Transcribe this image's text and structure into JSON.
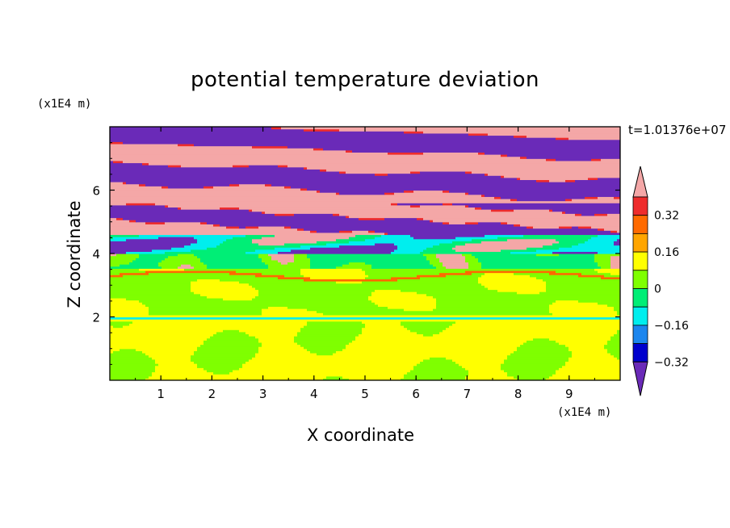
{
  "chart_data": {
    "type": "heatmap",
    "title": "potential temperature deviation",
    "xlabel": "X coordinate",
    "ylabel": "Z coordinate",
    "x_unit": "(x1E4 m)",
    "y_unit": "(x1E4 m)",
    "timestamp": "t=1.01376e+07",
    "xlim": [
      0,
      10
    ],
    "ylim": [
      0,
      8
    ],
    "x_ticks": [
      "1",
      "2",
      "3",
      "4",
      "5",
      "6",
      "7",
      "8",
      "9"
    ],
    "y_ticks": [
      "2",
      "4",
      "6"
    ],
    "colorbar": {
      "levels": [
        -0.4,
        -0.32,
        -0.24,
        -0.16,
        -0.08,
        0,
        0.08,
        0.16,
        0.24,
        0.32,
        0.4
      ],
      "tick_labels": [
        "0.32",
        "0.16",
        "0",
        "−0.16",
        "−0.32"
      ],
      "colors_top_to_bottom": [
        "#f4a7a7",
        "#ee2c2c",
        "#ff6a00",
        "#ffa500",
        "#ffff00",
        "#7fff00",
        "#00ee76",
        "#00eeee",
        "#1c86ee",
        "#0000cd",
        "#6a2ab8"
      ],
      "extend": "both"
    },
    "bands": [
      {
        "z_range": [
          0.0,
          1.8
        ],
        "dominant": 0.05,
        "secondary": -0.02
      },
      {
        "z_range": [
          1.8,
          2.1
        ],
        "dominant": -0.12,
        "note": "thin inversion line"
      },
      {
        "z_range": [
          2.1,
          3.6
        ],
        "dominant": -0.02,
        "secondary": 0.03
      },
      {
        "z_range": [
          3.6,
          4.0
        ],
        "dominant": -0.1,
        "secondary": 0.42
      },
      {
        "z_range": [
          4.0,
          4.6
        ],
        "dominant": -0.2,
        "secondary": 0.42
      },
      {
        "z_range": [
          4.6,
          5.6
        ],
        "dominant": 0.42,
        "secondary": -0.42
      },
      {
        "z_range": [
          5.6,
          8.0
        ],
        "dominant": 0.42,
        "secondary": -0.42,
        "note": "alternating stripes"
      }
    ]
  }
}
